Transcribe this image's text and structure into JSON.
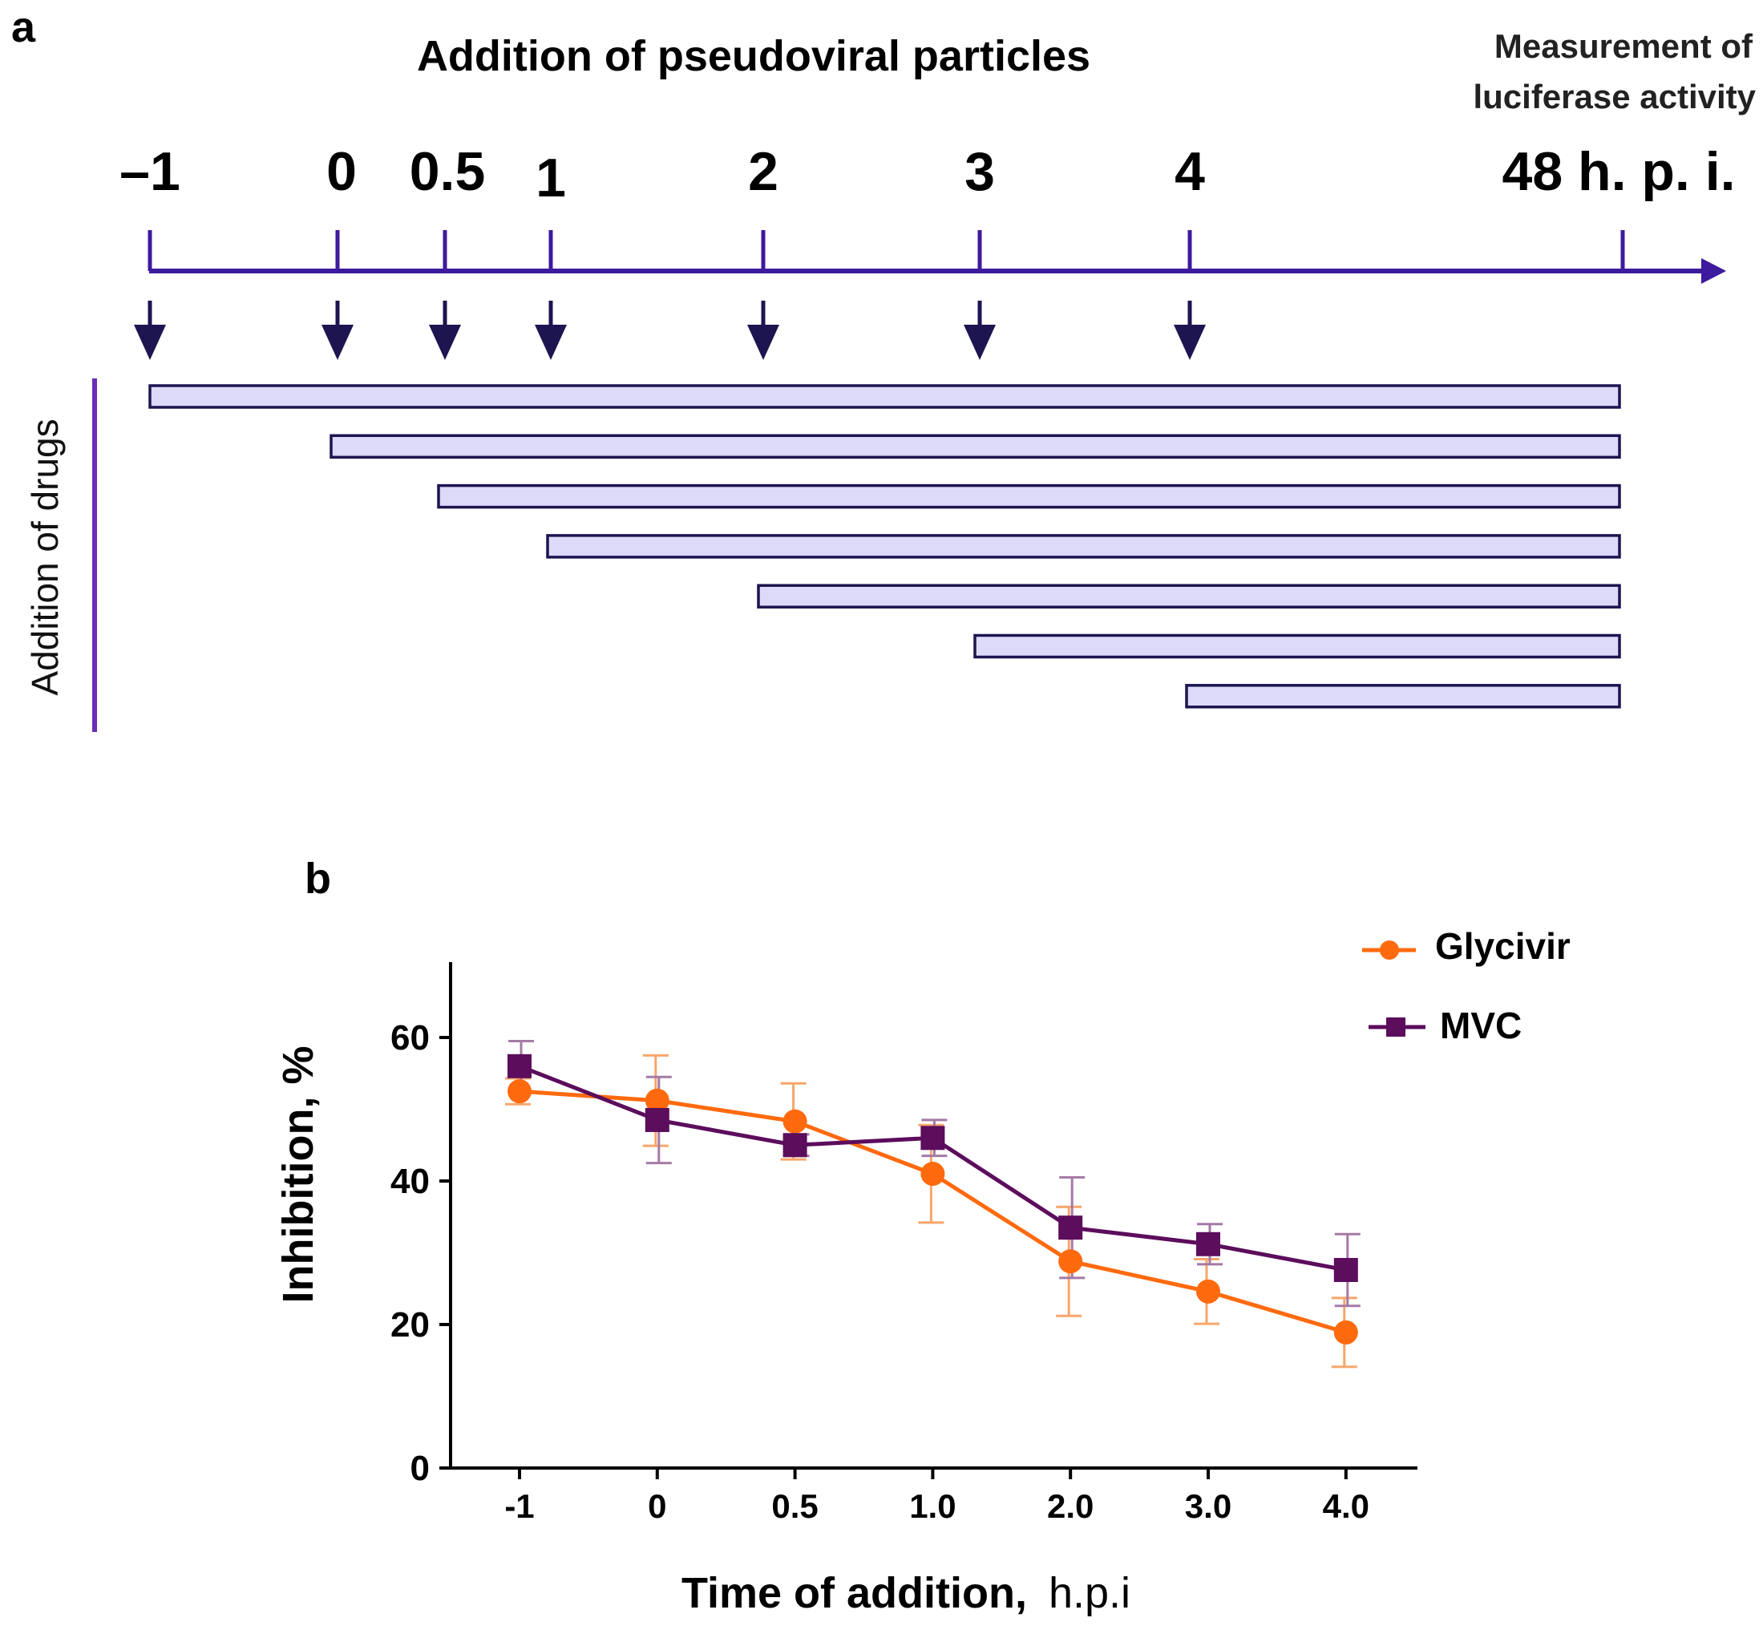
{
  "panel_a": {
    "label": "a",
    "title": "Addition of pseudoviral particles",
    "measurement_line1": "Measurement of",
    "measurement_line2": "luciferase activity",
    "side_label": "Addition of drugs",
    "axis_color": "#3d1a9e",
    "arrow_color": "#1c1550",
    "bar_fill": "#dcdaf8",
    "bar_stroke": "#1c1550",
    "end_value": 48,
    "end_label": "48 h. p. i.",
    "timepoints": [
      {
        "value": -1,
        "label": "–1"
      },
      {
        "value": 0,
        "label": "0"
      },
      {
        "value": 0.5,
        "label": "0.5"
      },
      {
        "value": 1,
        "label": "1"
      },
      {
        "value": 2,
        "label": "2"
      },
      {
        "value": 3,
        "label": "3"
      },
      {
        "value": 4,
        "label": "4"
      }
    ]
  },
  "chart_data": {
    "panel_label": "b",
    "type": "line",
    "title": "",
    "xlabel": "Time of addition,",
    "xlabel_unit": "h.p.i",
    "ylabel": "Inhibition, %",
    "categories": [
      "-1",
      "0",
      "0.5",
      "1.0",
      "2.0",
      "3.0",
      "4.0"
    ],
    "ylim": [
      0,
      70
    ],
    "yticks": [
      0,
      20,
      40,
      60
    ],
    "grid": false,
    "legend_position": "top-right",
    "series": [
      {
        "name": "Glycivir",
        "color": "#ff6a0e",
        "marker": "circle",
        "values": [
          52.5,
          51.2,
          48.3,
          41.0,
          28.8,
          24.6,
          18.9
        ],
        "errors": [
          1.8,
          6.3,
          5.3,
          6.8,
          7.6,
          4.5,
          4.8
        ]
      },
      {
        "name": "MVC",
        "color": "#5c0d5c",
        "marker": "square",
        "values": [
          56.0,
          48.5,
          45.0,
          46.0,
          33.5,
          31.2,
          27.6
        ],
        "errors": [
          3.5,
          6.0,
          1.5,
          2.5,
          7.0,
          2.8,
          5.0
        ]
      }
    ]
  }
}
